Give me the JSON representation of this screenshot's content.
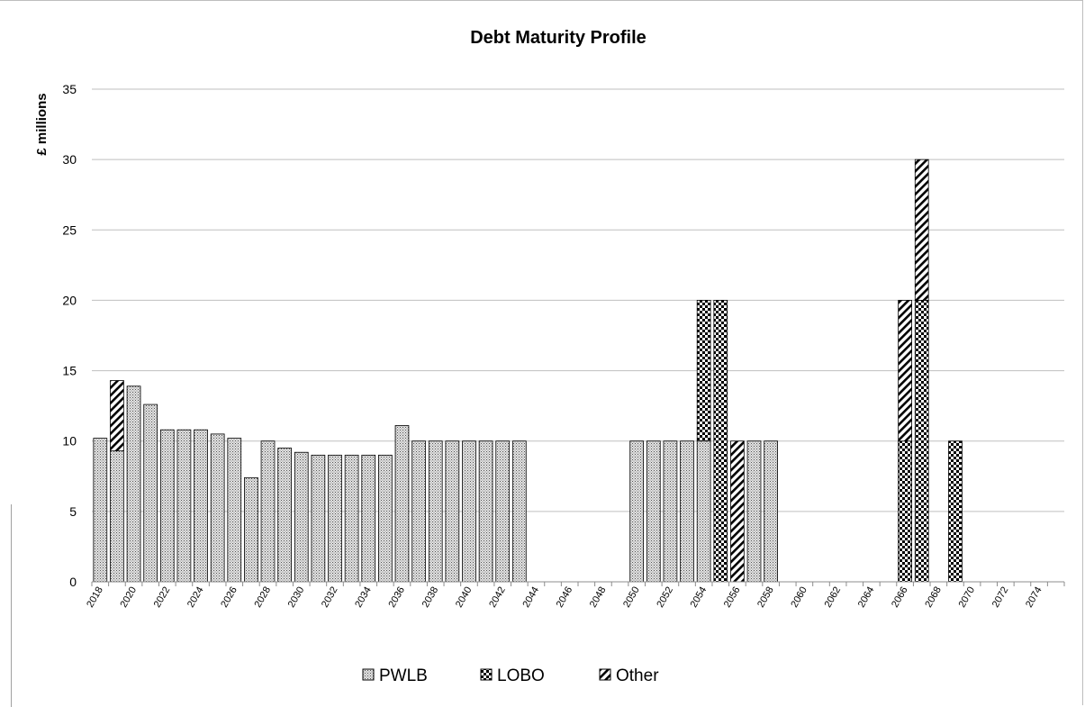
{
  "chart_data": {
    "type": "bar",
    "stacked": true,
    "title": "Debt Maturity Profile",
    "xlabel": "",
    "ylabel": "£ millions",
    "ylim": [
      0,
      35
    ],
    "yticks": [
      0,
      5,
      10,
      15,
      20,
      25,
      30,
      35
    ],
    "grid": true,
    "legend_position": "bottom",
    "x_start": 2018,
    "x_end": 2075,
    "x_tick_labels": [
      "2018",
      "2020",
      "2022",
      "2024",
      "2026",
      "2028",
      "2030",
      "2032",
      "2034",
      "2036",
      "2038",
      "2040",
      "2042",
      "2044",
      "2046",
      "2048",
      "2050",
      "2052",
      "2054",
      "2056",
      "2058",
      "2060",
      "2062",
      "2064",
      "2066",
      "2068",
      "2070",
      "2072",
      "2074"
    ],
    "series": [
      {
        "name": "PWLB",
        "pattern": "dots",
        "points": [
          [
            2018,
            10.2
          ],
          [
            2019,
            9.3
          ],
          [
            2020,
            13.9
          ],
          [
            2021,
            12.6
          ],
          [
            2022,
            10.8
          ],
          [
            2023,
            10.8
          ],
          [
            2024,
            10.8
          ],
          [
            2025,
            10.5
          ],
          [
            2026,
            10.2
          ],
          [
            2027,
            7.4
          ],
          [
            2028,
            10.0
          ],
          [
            2029,
            9.5
          ],
          [
            2030,
            9.2
          ],
          [
            2031,
            9.0
          ],
          [
            2032,
            9.0
          ],
          [
            2033,
            9.0
          ],
          [
            2034,
            9.0
          ],
          [
            2035,
            9.0
          ],
          [
            2036,
            11.1
          ],
          [
            2037,
            10.0
          ],
          [
            2038,
            10.0
          ],
          [
            2039,
            10.0
          ],
          [
            2040,
            10.0
          ],
          [
            2041,
            10.0
          ],
          [
            2042,
            10.0
          ],
          [
            2043,
            10.0
          ],
          [
            2050,
            10.0
          ],
          [
            2051,
            10.0
          ],
          [
            2052,
            10.0
          ],
          [
            2053,
            10.0
          ],
          [
            2054,
            10.0
          ],
          [
            2056,
            0.0
          ],
          [
            2057,
            10.0
          ],
          [
            2058,
            10.0
          ]
        ]
      },
      {
        "name": "LOBO",
        "pattern": "checker",
        "points": [
          [
            2054,
            10.0
          ],
          [
            2055,
            20.0
          ],
          [
            2066,
            10.0
          ],
          [
            2067,
            20.0
          ],
          [
            2069,
            10.0
          ]
        ]
      },
      {
        "name": "Other",
        "pattern": "hatch",
        "points": [
          [
            2019,
            5.0
          ],
          [
            2056,
            10.0
          ],
          [
            2066,
            10.0
          ],
          [
            2067,
            10.0
          ]
        ]
      }
    ]
  }
}
